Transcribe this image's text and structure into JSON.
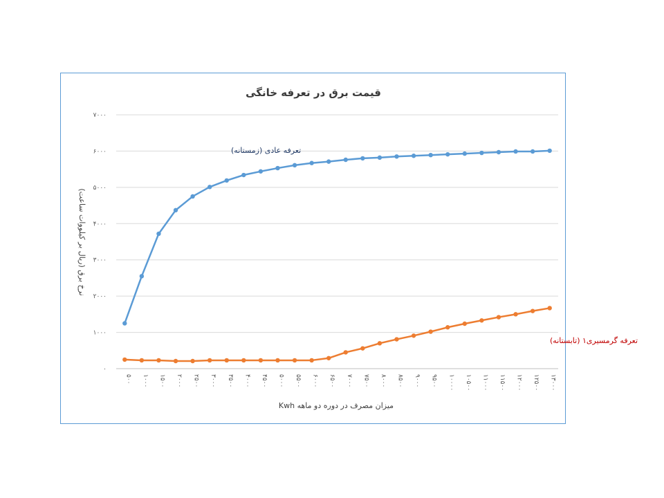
{
  "chart_data": {
    "type": "line",
    "title": "قیمت برق در تعرفه خانگی",
    "xlabel": "میزان مصرف در دوره دو ماهه    Kwh",
    "ylabel": "نرخ برق (ریال بر کیلووات ساعت)",
    "ylim": [
      0,
      7000
    ],
    "yticks": [
      "۰",
      "۱۰۰۰",
      "۲۰۰۰",
      "۳۰۰۰",
      "۴۰۰۰",
      "۵۰۰۰",
      "۶۰۰۰",
      "۷۰۰۰"
    ],
    "grid": true,
    "categories": [
      "۵۰۰",
      "۱۰۰۰",
      "۱۵۰۰",
      "۲۰۰۰",
      "۲۵۰۰",
      "۳۰۰۰",
      "۳۵۰۰",
      "۴۰۰۰",
      "۴۵۰۰",
      "۵۰۰۰",
      "۵۵۰۰",
      "۶۰۰۰",
      "۶۵۰۰",
      "۷۰۰۰",
      "۷۵۰۰",
      "۸۰۰۰",
      "۸۵۰۰",
      "۹۰۰۰",
      "۹۵۰۰",
      "۱۰۰۰۰",
      "۱۰۵۰۰",
      "۱۱۰۰۰",
      "۱۱۵۰۰",
      "۱۲۰۰۰",
      "۱۲۵۰۰",
      "۱۳۰۰۰"
    ],
    "series": [
      {
        "name": "تعرفه عادی (زمستانه)",
        "color": "#5b9bd5",
        "label_color": "#1f3864",
        "values": [
          1250,
          2550,
          3720,
          4370,
          4750,
          5010,
          5190,
          5340,
          5440,
          5530,
          5610,
          5670,
          5710,
          5760,
          5800,
          5820,
          5850,
          5870,
          5890,
          5910,
          5930,
          5950,
          5970,
          5990,
          5990,
          6010
        ]
      },
      {
        "name": "تعرفه گرمسیری۱ (تابستانه)",
        "color": "#ed7d31",
        "label_color": "#c00000",
        "values": [
          250,
          230,
          230,
          210,
          210,
          230,
          230,
          230,
          230,
          230,
          230,
          230,
          290,
          450,
          560,
          700,
          810,
          910,
          1020,
          1140,
          1240,
          1330,
          1420,
          1500,
          1590,
          1670
        ]
      }
    ]
  }
}
